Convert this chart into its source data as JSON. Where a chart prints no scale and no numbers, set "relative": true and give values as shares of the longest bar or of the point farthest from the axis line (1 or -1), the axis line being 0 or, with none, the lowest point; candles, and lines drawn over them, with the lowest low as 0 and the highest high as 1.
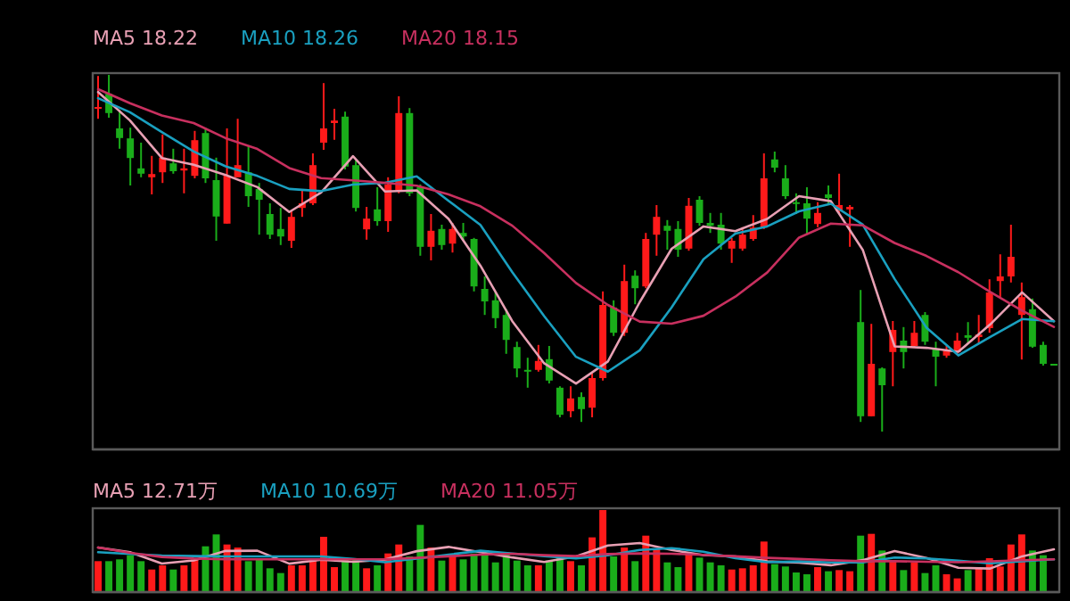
{
  "chart_data": [
    {
      "type": "candlestick",
      "relative": true,
      "categories": [
        null,
        null,
        null,
        null,
        null,
        null,
        null,
        null,
        null,
        null,
        null,
        null,
        null,
        null,
        null,
        null,
        null,
        null,
        null,
        null,
        null,
        null,
        null,
        null,
        null,
        null,
        null,
        null,
        null,
        null,
        null,
        null,
        null,
        null,
        null,
        null,
        null,
        null,
        null,
        null,
        null,
        null,
        null,
        null,
        null,
        null,
        null,
        null,
        null,
        null,
        null,
        null,
        null,
        null,
        null,
        null,
        null,
        null,
        null,
        null,
        null,
        null,
        null,
        null,
        null,
        null,
        null,
        null,
        null,
        null,
        null,
        null,
        null,
        null,
        null,
        null,
        null,
        null,
        null,
        null,
        null,
        null,
        null,
        null,
        null,
        null,
        null,
        null,
        null,
        null
      ],
      "colors": [
        "#ff1a1a",
        "#1aad1a",
        "#1aad1a",
        "#1aad1a",
        "#1aad1a",
        "#ff1a1a",
        "#ff1a1a",
        "#1aad1a",
        "#ff1a1a",
        "#ff1a1a",
        "#1aad1a",
        "#1aad1a",
        "#ff1a1a",
        "#ff1a1a",
        "#1aad1a",
        "#1aad1a",
        "#1aad1a",
        "#1aad1a",
        "#ff1a1a",
        "#ff1a1a",
        "#ff1a1a",
        "#ff1a1a",
        "#ff1a1a",
        "#1aad1a",
        "#1aad1a",
        "#ff1a1a",
        "#1aad1a",
        "#ff1a1a",
        "#ff1a1a",
        "#1aad1a",
        "#1aad1a",
        "#ff1a1a",
        "#1aad1a",
        "#ff1a1a",
        "#1aad1a",
        "#1aad1a",
        "#1aad1a",
        "#1aad1a",
        "#1aad1a",
        "#1aad1a",
        "#1aad1a",
        "#ff1a1a",
        "#1aad1a",
        "#1aad1a",
        "#ff1a1a",
        "#1aad1a",
        "#ff1a1a",
        "#ff1a1a",
        "#1aad1a",
        "#ff1a1a",
        "#1aad1a",
        "#ff1a1a",
        "#ff1a1a",
        "#1aad1a",
        "#1aad1a",
        "#ff1a1a",
        "#1aad1a",
        "#1aad1a",
        "#1aad1a",
        "#ff1a1a",
        "#ff1a1a",
        "#ff1a1a",
        "#ff1a1a",
        "#1aad1a",
        "#1aad1a",
        "#1aad1a",
        "#1aad1a",
        "#ff1a1a",
        "#1aad1a",
        "#ff1a1a",
        "#ff1a1a",
        "#1aad1a",
        "#ff1a1a",
        "#1aad1a",
        "#ff1a1a",
        "#1aad1a",
        "#ff1a1a",
        "#1aad1a",
        "#1aad1a",
        "#ff1a1a",
        "#ff1a1a",
        "#1aad1a",
        "#ff1a1a",
        "#ff1a1a",
        "#ff1a1a",
        "#ff1a1a",
        "#ff1a1a",
        "#1aad1a",
        "#1aad1a",
        "#1aad1a"
      ],
      "ohlc": [
        [
          0.907,
          0.997,
          0.877,
          0.91
        ],
        [
          0.947,
          1,
          0.88,
          0.893
        ],
        [
          0.85,
          0.902,
          0.793,
          0.823
        ],
        [
          0.822,
          0.852,
          0.69,
          0.767
        ],
        [
          0.738,
          0.81,
          0.713,
          0.723
        ],
        [
          0.713,
          0.773,
          0.665,
          0.722
        ],
        [
          0.727,
          0.833,
          0.697,
          0.768
        ],
        [
          0.752,
          0.793,
          0.723,
          0.73
        ],
        [
          0.732,
          0.793,
          0.668,
          0.738
        ],
        [
          0.717,
          0.843,
          0.71,
          0.817
        ],
        [
          0.837,
          0.852,
          0.697,
          0.71
        ],
        [
          0.705,
          0.768,
          0.535,
          0.603
        ],
        [
          0.583,
          0.85,
          0.583,
          0.718
        ],
        [
          0.713,
          0.877,
          0.713,
          0.747
        ],
        [
          0.727,
          0.802,
          0.63,
          0.66
        ],
        [
          0.68,
          0.697,
          0.552,
          0.65
        ],
        [
          0.61,
          0.64,
          0.54,
          0.552
        ],
        [
          0.568,
          0.627,
          0.523,
          0.547
        ],
        [
          0.535,
          0.618,
          0.515,
          0.602
        ],
        [
          0.627,
          0.677,
          0.602,
          0.64
        ],
        [
          0.64,
          0.78,
          0.635,
          0.747
        ],
        [
          0.81,
          0.977,
          0.79,
          0.85
        ],
        [
          0.865,
          0.905,
          0.818,
          0.872
        ],
        [
          0.883,
          0.897,
          0.735,
          0.743
        ],
        [
          0.747,
          0.76,
          0.617,
          0.627
        ],
        [
          0.567,
          0.63,
          0.538,
          0.597
        ],
        [
          0.623,
          0.685,
          0.577,
          0.59
        ],
        [
          0.59,
          0.713,
          0.56,
          0.693
        ],
        [
          0.677,
          0.94,
          0.668,
          0.893
        ],
        [
          0.893,
          0.907,
          0.66,
          0.668
        ],
        [
          0.685,
          0.693,
          0.493,
          0.518
        ],
        [
          0.518,
          0.61,
          0.48,
          0.563
        ],
        [
          0.568,
          0.58,
          0.51,
          0.523
        ],
        [
          0.527,
          0.585,
          0.502,
          0.568
        ],
        [
          0.557,
          0.585,
          0.535,
          0.547
        ],
        [
          0.54,
          0.543,
          0.393,
          0.407
        ],
        [
          0.4,
          0.435,
          0.327,
          0.365
        ],
        [
          0.368,
          0.393,
          0.29,
          0.318
        ],
        [
          0.327,
          0.343,
          0.218,
          0.257
        ],
        [
          0.237,
          0.252,
          0.152,
          0.177
        ],
        [
          0.173,
          0.207,
          0.123,
          0.17
        ],
        [
          0.173,
          0.243,
          0.168,
          0.198
        ],
        [
          0.203,
          0.24,
          0.135,
          0.143
        ],
        [
          0.123,
          0.127,
          0.04,
          0.047
        ],
        [
          0.057,
          0.127,
          0.04,
          0.093
        ],
        [
          0.097,
          0.11,
          0.027,
          0.063
        ],
        [
          0.067,
          0.163,
          0.04,
          0.15
        ],
        [
          0.15,
          0.393,
          0.143,
          0.355
        ],
        [
          0.348,
          0.368,
          0.268,
          0.277
        ],
        [
          0.277,
          0.468,
          0.268,
          0.422
        ],
        [
          0.437,
          0.452,
          0.357,
          0.402
        ],
        [
          0.407,
          0.557,
          0.402,
          0.54
        ],
        [
          0.552,
          0.635,
          0.493,
          0.602
        ],
        [
          0.577,
          0.593,
          0.51,
          0.563
        ],
        [
          0.568,
          0.59,
          0.49,
          0.51
        ],
        [
          0.513,
          0.655,
          0.507,
          0.633
        ],
        [
          0.65,
          0.66,
          0.577,
          0.585
        ],
        [
          0.585,
          0.613,
          0.557,
          0.577
        ],
        [
          0.58,
          0.613,
          0.51,
          0.527
        ],
        [
          0.513,
          0.543,
          0.473,
          0.535
        ],
        [
          0.513,
          0.573,
          0.507,
          0.552
        ],
        [
          0.54,
          0.607,
          0.535,
          0.572
        ],
        [
          0.573,
          0.78,
          0.568,
          0.71
        ],
        [
          0.763,
          0.785,
          0.727,
          0.74
        ],
        [
          0.71,
          0.747,
          0.652,
          0.66
        ],
        [
          0.643,
          0.668,
          0.61,
          0.64
        ],
        [
          0.64,
          0.685,
          0.552,
          0.597
        ],
        [
          0.582,
          0.643,
          0.573,
          0.613
        ],
        [
          0.665,
          0.69,
          0.64,
          0.655
        ],
        [
          0.618,
          0.723,
          0.61,
          0.635
        ],
        [
          0.623,
          0.635,
          0.518,
          0.63
        ],
        [
          0.307,
          0.397,
          0.027,
          0.043
        ],
        [
          0.043,
          0.302,
          0.043,
          0.19
        ],
        [
          0.177,
          0.18,
          0,
          0.13
        ],
        [
          0.223,
          0.31,
          0.127,
          0.285
        ],
        [
          0.255,
          0.293,
          0.177,
          0.223
        ],
        [
          0.24,
          0.31,
          0.235,
          0.277
        ],
        [
          0.327,
          0.335,
          0.243,
          0.252
        ],
        [
          0.23,
          0.252,
          0.127,
          0.21
        ],
        [
          0.213,
          0.24,
          0.207,
          0.227
        ],
        [
          0.223,
          0.277,
          0.218,
          0.255
        ],
        [
          0.27,
          0.307,
          0.247,
          0.263
        ],
        [
          0.265,
          0.327,
          0.247,
          0.272
        ],
        [
          0.29,
          0.427,
          0.277,
          0.39
        ],
        [
          0.422,
          0.497,
          0.377,
          0.435
        ],
        [
          0.435,
          0.58,
          0.418,
          0.49
        ],
        [
          0.327,
          0.418,
          0.202,
          0.377
        ],
        [
          0.343,
          0.373,
          0.235,
          0.238
        ],
        [
          0.243,
          0.252,
          0.185,
          0.19
        ],
        [
          0.19,
          0.19,
          0.187,
          0.187
        ]
      ]
    },
    {
      "type": "line",
      "relative": true,
      "categories": [
        null,
        null,
        null,
        null,
        null,
        null,
        null,
        null,
        null,
        null,
        null,
        null,
        null,
        null,
        null,
        null,
        null,
        null,
        null,
        null,
        null,
        null,
        null,
        null,
        null,
        null,
        null,
        null,
        null,
        null,
        null
      ],
      "series": [
        {
          "name": "MA5 18.22",
          "color": "#e8a0b4",
          "values": [
            0.992,
            0.913,
            0.809,
            0.79,
            0.762,
            0.728,
            0.659,
            0.713,
            0.814,
            0.716,
            0.719,
            0.64,
            0.51,
            0.356,
            0.239,
            0.183,
            0.244,
            0.409,
            0.557,
            0.619,
            0.606,
            0.64,
            0.703,
            0.689,
            0.554,
            0.286,
            0.282,
            0.271,
            0.347,
            0.436,
            0.356
          ]
        },
        {
          "name": "MA10 18.26",
          "color": "#1aa0c0",
          "values": [
            0.975,
            0.936,
            0.881,
            0.827,
            0.786,
            0.759,
            0.723,
            0.717,
            0.735,
            0.74,
            0.758,
            0.69,
            0.623,
            0.492,
            0.37,
            0.257,
            0.216,
            0.275,
            0.394,
            0.528,
            0.599,
            0.619,
            0.661,
            0.682,
            0.624,
            0.473,
            0.338,
            0.261,
            0.312,
            0.362,
            0.356
          ]
        },
        {
          "name": "MA20 18.15",
          "color": "#c8305f",
          "values": [
            1,
            0.961,
            0.927,
            0.906,
            0.864,
            0.834,
            0.781,
            0.753,
            0.747,
            0.74,
            0.732,
            0.708,
            0.675,
            0.621,
            0.545,
            0.462,
            0.401,
            0.355,
            0.349,
            0.371,
            0.424,
            0.491,
            0.588,
            0.627,
            0.622,
            0.573,
            0.537,
            0.492,
            0.437,
            0.385,
            0.34
          ]
        }
      ]
    },
    {
      "type": "bar",
      "relative": true,
      "categories": [
        null,
        null,
        null,
        null,
        null,
        null,
        null,
        null,
        null,
        null,
        null,
        null,
        null,
        null,
        null,
        null,
        null,
        null,
        null,
        null,
        null,
        null,
        null,
        null,
        null,
        null,
        null,
        null,
        null,
        null,
        null,
        null,
        null,
        null,
        null,
        null,
        null,
        null,
        null,
        null,
        null,
        null,
        null,
        null,
        null,
        null,
        null,
        null,
        null,
        null,
        null,
        null,
        null,
        null,
        null,
        null,
        null,
        null,
        null,
        null,
        null,
        null,
        null,
        null,
        null,
        null,
        null,
        null,
        null,
        null,
        null,
        null,
        null,
        null,
        null,
        null,
        null,
        null,
        null,
        null,
        null,
        null,
        null,
        null,
        null,
        null,
        null,
        null,
        null
      ],
      "colors": [
        "#ff1a1a",
        "#1aad1a",
        "#1aad1a",
        "#1aad1a",
        "#1aad1a",
        "#ff1a1a",
        "#ff1a1a",
        "#1aad1a",
        "#ff1a1a",
        "#ff1a1a",
        "#1aad1a",
        "#1aad1a",
        "#ff1a1a",
        "#ff1a1a",
        "#1aad1a",
        "#1aad1a",
        "#1aad1a",
        "#1aad1a",
        "#ff1a1a",
        "#ff1a1a",
        "#ff1a1a",
        "#ff1a1a",
        "#ff1a1a",
        "#1aad1a",
        "#1aad1a",
        "#ff1a1a",
        "#1aad1a",
        "#ff1a1a",
        "#ff1a1a",
        "#1aad1a",
        "#1aad1a",
        "#ff1a1a",
        "#1aad1a",
        "#ff1a1a",
        "#1aad1a",
        "#1aad1a",
        "#1aad1a",
        "#1aad1a",
        "#1aad1a",
        "#1aad1a",
        "#1aad1a",
        "#ff1a1a",
        "#1aad1a",
        "#1aad1a",
        "#ff1a1a",
        "#1aad1a",
        "#ff1a1a",
        "#ff1a1a",
        "#1aad1a",
        "#ff1a1a",
        "#1aad1a",
        "#ff1a1a",
        "#ff1a1a",
        "#1aad1a",
        "#1aad1a",
        "#ff1a1a",
        "#1aad1a",
        "#1aad1a",
        "#1aad1a",
        "#ff1a1a",
        "#ff1a1a",
        "#ff1a1a",
        "#ff1a1a",
        "#1aad1a",
        "#1aad1a",
        "#1aad1a",
        "#1aad1a",
        "#ff1a1a",
        "#1aad1a",
        "#ff1a1a",
        "#ff1a1a",
        "#1aad1a",
        "#ff1a1a",
        "#1aad1a",
        "#ff1a1a",
        "#1aad1a",
        "#ff1a1a",
        "#1aad1a",
        "#1aad1a",
        "#ff1a1a",
        "#ff1a1a",
        "#1aad1a",
        "#ff1a1a",
        "#ff1a1a",
        "#ff1a1a",
        "#ff1a1a",
        "#ff1a1a",
        "#1aad1a",
        "#1aad1a"
      ],
      "values": [
        0.377,
        0.377,
        0.399,
        0.449,
        0.377,
        0.275,
        0.326,
        0.275,
        0.326,
        0.399,
        0.558,
        0.703,
        0.58,
        0.543,
        0.377,
        0.399,
        0.29,
        0.232,
        0.326,
        0.326,
        0.399,
        0.674,
        0.304,
        0.399,
        0.399,
        0.29,
        0.326,
        0.471,
        0.58,
        0.435,
        0.819,
        0.543,
        0.384,
        0.457,
        0.399,
        0.471,
        0.457,
        0.362,
        0.486,
        0.384,
        0.326,
        0.326,
        0.384,
        0.449,
        0.377,
        0.326,
        0.667,
        1,
        0.435,
        0.543,
        0.377,
        0.688,
        0.522,
        0.362,
        0.304,
        0.471,
        0.42,
        0.362,
        0.326,
        0.275,
        0.29,
        0.326,
        0.616,
        0.341,
        0.312,
        0.239,
        0.217,
        0.304,
        0.254,
        0.268,
        0.254,
        0.688,
        0.71,
        0.507,
        0.377,
        0.268,
        0.362,
        0.232,
        0.326,
        0.217,
        0.167,
        0.268,
        0.29,
        0.413,
        0.312,
        0.58,
        0.703,
        0.507,
        0.449
      ]
    },
    {
      "type": "line",
      "relative": true,
      "categories": [
        null,
        null,
        null,
        null,
        null,
        null,
        null,
        null,
        null,
        null,
        null,
        null,
        null,
        null,
        null,
        null,
        null,
        null,
        null,
        null,
        null,
        null,
        null,
        null,
        null,
        null,
        null,
        null,
        null,
        null,
        null
      ],
      "series": [
        {
          "name": "MA5 12.71万",
          "color": "#e8a0b4",
          "values": [
            0.908,
            0.813,
            0.582,
            0.644,
            0.839,
            0.843,
            0.579,
            0.659,
            0.617,
            0.662,
            0.834,
            0.921,
            0.814,
            0.706,
            0.615,
            0.727,
            0.95,
            1,
            0.858,
            0.754,
            0.727,
            0.625,
            0.6,
            0.547,
            0.652,
            0.838,
            0.694,
            0.495,
            0.48,
            0.729,
            0.873
          ]
        },
        {
          "name": "MA10 10.69万",
          "color": "#1aa0c0",
          "values": [
            0.813,
            0.776,
            0.746,
            0.734,
            0.727,
            0.727,
            0.727,
            0.727,
            0.676,
            0.61,
            0.682,
            0.763,
            0.843,
            0.786,
            0.734,
            0.686,
            0.751,
            0.858,
            0.896,
            0.824,
            0.692,
            0.609,
            0.625,
            0.605,
            0.605,
            0.704,
            0.687,
            0.639,
            0.587,
            0.63,
            0.667
          ]
        },
        {
          "name": "MA20 11.05万",
          "color": "#c8305f",
          "values": [
            0.908,
            0.799,
            0.716,
            0.684,
            0.667,
            0.667,
            0.667,
            0.667,
            0.667,
            0.667,
            0.697,
            0.729,
            0.763,
            0.783,
            0.753,
            0.734,
            0.774,
            0.788,
            0.783,
            0.759,
            0.729,
            0.697,
            0.674,
            0.649,
            0.63,
            0.63,
            0.619,
            0.609,
            0.627,
            0.651,
            0.667
          ]
        }
      ]
    }
  ]
}
